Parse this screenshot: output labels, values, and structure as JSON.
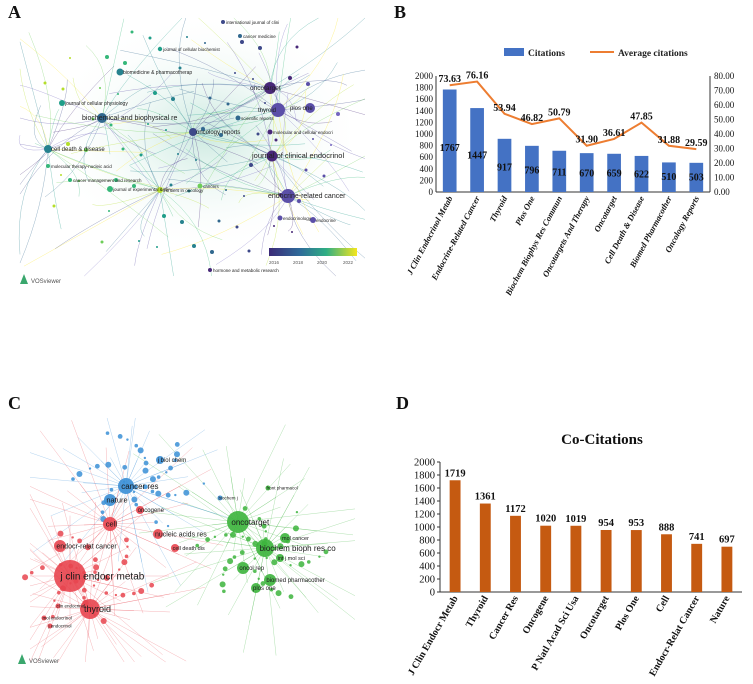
{
  "panels": {
    "a": "A",
    "b": "B",
    "c": "C",
    "d": "D"
  },
  "network_a": {
    "labels": [
      "journal of cellular biochemist",
      "biomedicine & pharmacotherap",
      "biochemical and biophysical re",
      "oncotarget",
      "thyroid",
      "plos one",
      "journal of cellular physiology",
      "cell death & disease",
      "oncology reports",
      "journal of clinical endocrinol",
      "molecular therapy-nucleic acid",
      "cancer management and research",
      "endocrine-related cancer",
      "journal of experimental & clin",
      "endocrine",
      "hormone and metabolic research",
      "international journal of clini",
      "cancer medicine",
      "scientific reports",
      "cancers",
      "frontiers in oncology",
      "endocrinology",
      "molecular and cellular endocri"
    ],
    "tool": "VOSviewer",
    "legend_ticks": [
      "2016",
      "2018",
      "2020",
      "2022"
    ]
  },
  "network_c": {
    "labels": [
      "cancer res",
      "nature",
      "cell",
      "nucleic acids res",
      "oncotarget",
      "biochem bioph res co",
      "j clin endocr metab",
      "thyroid",
      "endocr-relat cancer",
      "oncol rep",
      "biomed pharmacother",
      "plos one",
      "j biol chem",
      "oncogene",
      "cell death dis",
      "mol cancer",
      "int j mol sci",
      "front pharmacol",
      "biochem j",
      "j endocrinol",
      "clin endocrinol",
      "mol endocrinol"
    ],
    "tool": "VOSviewer"
  },
  "chart_data": [
    {
      "type": "bar",
      "title": "",
      "categories": [
        "J Clin Endocrinol Metab",
        "Endocrine-Related Cancer",
        "Thyroid",
        "Plos One",
        "Biochem Biophys Res Commun",
        "Oncotargets And Therapy",
        "Oncotarget",
        "Cell Death & Disease",
        "Biomed Pharmacother",
        "Oncology Reports"
      ],
      "series": [
        {
          "name": "Citations",
          "kind": "bar",
          "axis": "left",
          "color": "#4472C4",
          "values": [
            1767,
            1447,
            917,
            796,
            711,
            670,
            659,
            622,
            510,
            503
          ]
        },
        {
          "name": "Average citations",
          "kind": "line",
          "axis": "right",
          "color": "#ED7D31",
          "values": [
            73.63,
            76.16,
            53.94,
            46.82,
            50.79,
            31.9,
            36.61,
            47.85,
            31.88,
            29.59
          ]
        }
      ],
      "bar_labels": [
        "1767",
        "1447",
        "917",
        "796",
        "711",
        "670",
        "659",
        "622",
        "510",
        "503"
      ],
      "line_labels": [
        "73.63",
        "76.16",
        "53.94",
        "46.82",
        "50.79",
        "31.90",
        "36.61",
        "47.85",
        "31.88",
        "29.59"
      ],
      "ylim_left": [
        0,
        2000
      ],
      "ylim_right": [
        0,
        80
      ],
      "yticks_left": [
        "0",
        "200",
        "400",
        "600",
        "800",
        "1000",
        "1200",
        "1400",
        "1600",
        "1800",
        "2000"
      ],
      "yticks_right": [
        "0.00",
        "10.00",
        "20.00",
        "30.00",
        "40.00",
        "50.00",
        "60.00",
        "70.00",
        "80.00"
      ],
      "legend": "top"
    },
    {
      "type": "bar",
      "title": "Co-Citations",
      "categories": [
        "J Clin Endocr Metab",
        "Thyroid",
        "Cancer Res",
        "Oncogene",
        "P Natl Acad Sci Usa",
        "Oncotarget",
        "Plos One",
        "Cell",
        "Endocr-Relat Cancer",
        "Nature"
      ],
      "series": [
        {
          "name": "Co-Citations",
          "color": "#C55A11",
          "values": [
            1719,
            1361,
            1172,
            1020,
            1019,
            954,
            953,
            888,
            741,
            697
          ]
        }
      ],
      "bar_labels": [
        "1719",
        "1361",
        "1172",
        "1020",
        "1019",
        "954",
        "953",
        "888",
        "741",
        "697"
      ],
      "ylim": [
        0,
        2000
      ],
      "yticks": [
        "0",
        "200",
        "400",
        "600",
        "800",
        "1000",
        "1200",
        "1400",
        "1600",
        "1800",
        "2000"
      ]
    }
  ]
}
